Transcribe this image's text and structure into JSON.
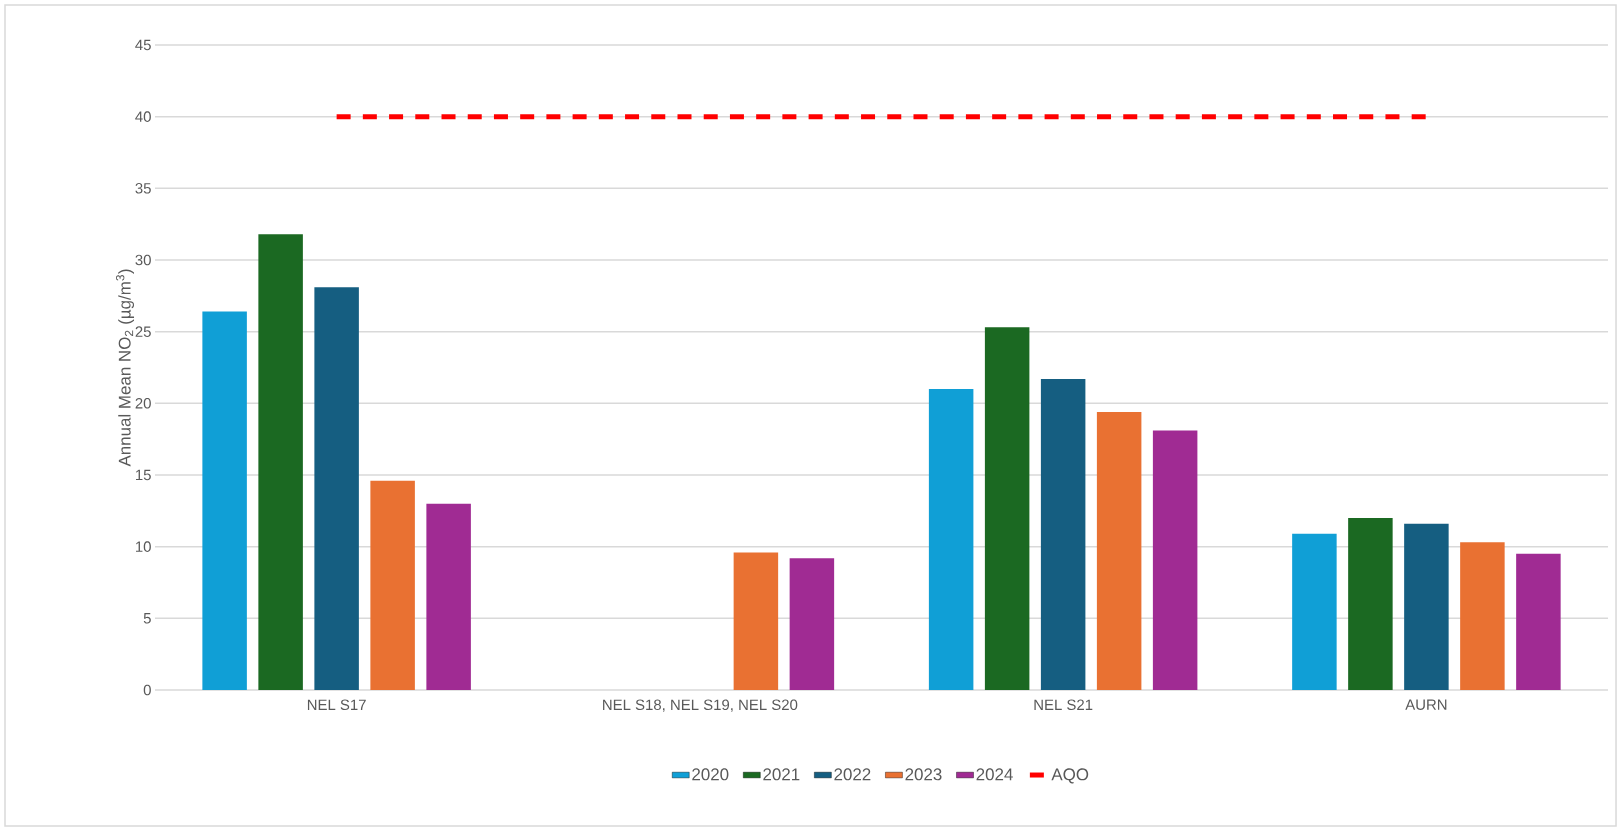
{
  "chart_data": {
    "type": "bar",
    "ylabel": "Annual Mean NO$_{2}$ (µg/m$^{3}$)",
    "categories": [
      "NEL S17",
      "NEL S18, NEL S19, NEL S20",
      "NEL S21",
      "AURN"
    ],
    "series": [
      {
        "name": "2020",
        "color": "#109fd6",
        "values": [
          26.4,
          null,
          21.0,
          10.9
        ]
      },
      {
        "name": "2021",
        "color": "#1b6922",
        "values": [
          31.8,
          null,
          25.3,
          12.0
        ]
      },
      {
        "name": "2022",
        "color": "#155e81",
        "values": [
          28.1,
          null,
          21.7,
          11.6
        ]
      },
      {
        "name": "2023",
        "color": "#e97132",
        "values": [
          14.6,
          9.6,
          19.4,
          10.3
        ]
      },
      {
        "name": "2024",
        "color": "#a02b93",
        "values": [
          13.0,
          9.2,
          18.1,
          9.5
        ]
      },
      {
        "name": "AQO",
        "type": "line",
        "color": "#ff0000",
        "line_style": "dashed",
        "marker": "none",
        "values": [
          40,
          40,
          40,
          40
        ]
      }
    ],
    "ylim": [
      0,
      45
    ],
    "yticks": [
      0,
      5,
      10,
      15,
      20,
      25,
      30,
      35,
      40,
      45
    ],
    "grid": "y",
    "legend": "bottom"
  }
}
